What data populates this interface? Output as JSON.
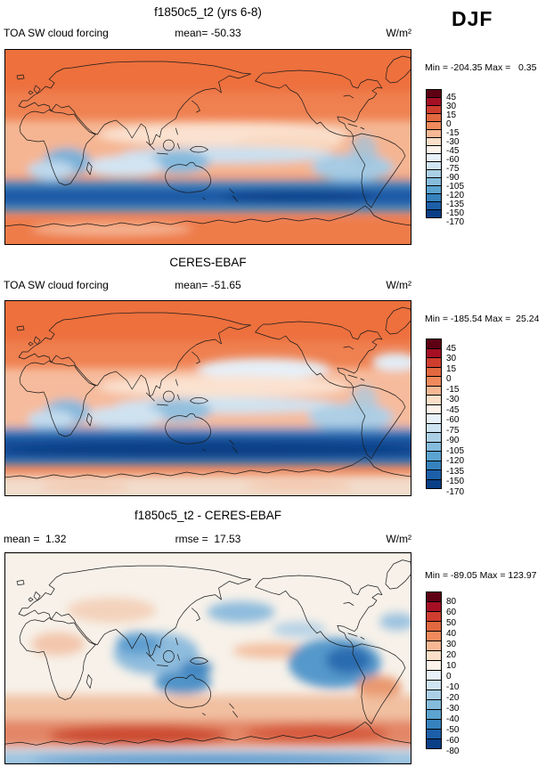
{
  "page": {
    "season": "DJF"
  },
  "panels": [
    {
      "title": "f1850c5_t2 (yrs 6-8)",
      "var_label": "TOA SW cloud forcing",
      "stat1": "mean= -50.33",
      "units": "W/m²",
      "minmax": "Min = -204.35 Max =   0.35"
    },
    {
      "title": "CERES-EBAF",
      "var_label": "TOA SW cloud forcing",
      "stat1": "mean= -51.65",
      "units": "W/m²",
      "minmax": "Min = -185.54 Max =  25.24"
    },
    {
      "title": "f1850c5_t2 - CERES-EBAF",
      "stat1": "mean =  1.32",
      "stat2": "rmse =  17.53",
      "units": "W/m²",
      "minmax": "Min = -89.05 Max = 123.97"
    }
  ],
  "chart_data": [
    {
      "type": "heatmap",
      "title": "f1850c5_t2 (yrs 6-8)",
      "variable": "TOA SW cloud forcing",
      "season": "DJF",
      "units": "W/m^2",
      "stats": {
        "mean": -50.33,
        "min": -204.35,
        "max": 0.35
      },
      "colorbar": {
        "tick_labels": [
          "45",
          "30",
          "15",
          "0",
          "-15",
          "-30",
          "-45",
          "-60",
          "-75",
          "-90",
          "-105",
          "-120",
          "-135",
          "-150",
          "-170"
        ],
        "colors": [
          "#5e0013",
          "#a50f24",
          "#ce3d2e",
          "#e2683f",
          "#f08a5c",
          "#f6b894",
          "#fbdfc9",
          "#fdf3ea",
          "#e8f1f7",
          "#cfe4f2",
          "#abd0e6",
          "#85bcdc",
          "#5ba3d0",
          "#3582bd",
          "#1c5fa8",
          "#0a3e87"
        ]
      }
    },
    {
      "type": "heatmap",
      "title": "CERES-EBAF",
      "variable": "TOA SW cloud forcing",
      "season": "DJF",
      "units": "W/m^2",
      "stats": {
        "mean": -51.65,
        "min": -185.54,
        "max": 25.24
      },
      "colorbar": {
        "tick_labels": [
          "45",
          "30",
          "15",
          "0",
          "-15",
          "-30",
          "-45",
          "-60",
          "-75",
          "-90",
          "-105",
          "-120",
          "-135",
          "-150",
          "-170"
        ],
        "colors": [
          "#5e0013",
          "#a50f24",
          "#ce3d2e",
          "#e2683f",
          "#f08a5c",
          "#f6b894",
          "#fbdfc9",
          "#fdf3ea",
          "#e8f1f7",
          "#cfe4f2",
          "#abd0e6",
          "#85bcdc",
          "#5ba3d0",
          "#3582bd",
          "#1c5fa8",
          "#0a3e87"
        ]
      }
    },
    {
      "type": "heatmap",
      "title": "f1850c5_t2 - CERES-EBAF",
      "season": "DJF",
      "units": "W/m^2",
      "stats": {
        "mean": 1.32,
        "rmse": 17.53,
        "min": -89.05,
        "max": 123.97
      },
      "colorbar": {
        "tick_labels": [
          "80",
          "60",
          "50",
          "40",
          "30",
          "20",
          "10",
          "0",
          "-10",
          "-20",
          "-30",
          "-40",
          "-50",
          "-60",
          "-80"
        ],
        "colors": [
          "#5e0013",
          "#a50f24",
          "#ce3d2e",
          "#e2683f",
          "#f08a5c",
          "#f6b894",
          "#fbdfc9",
          "#fdf3ea",
          "#e8f1f7",
          "#cfe4f2",
          "#abd0e6",
          "#85bcdc",
          "#5ba3d0",
          "#3582bd",
          "#1c5fa8",
          "#0a3e87"
        ]
      }
    }
  ]
}
